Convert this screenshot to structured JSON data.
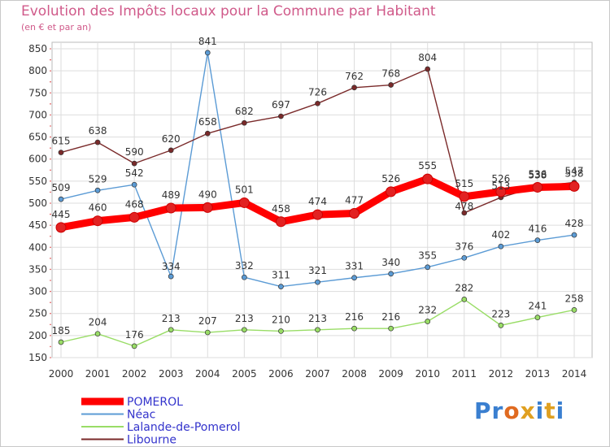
{
  "title": "Evolution des Impôts locaux pour la Commune par Habitant",
  "subtitle": "(en € et par an)",
  "logo_text": "Proxiti",
  "chart_data": {
    "type": "line",
    "title": "Evolution des Impôts locaux pour la Commune par Habitant",
    "subtitle": "(en € et par an)",
    "xlabel": "",
    "ylabel": "",
    "categories": [
      "2000",
      "2001",
      "2002",
      "2003",
      "2004",
      "2005",
      "2006",
      "2007",
      "2008",
      "2009",
      "2010",
      "2011",
      "2012",
      "2013",
      "2014"
    ],
    "ylim": [
      150,
      850
    ],
    "yticks": [
      150,
      200,
      250,
      300,
      350,
      400,
      450,
      500,
      550,
      600,
      650,
      700,
      750,
      800,
      850
    ],
    "grid": true,
    "legend_position": "bottom-left",
    "series": [
      {
        "name": "POMEROL",
        "color": "#ff0000",
        "values": [
          445,
          460,
          468,
          489,
          490,
          501,
          458,
          474,
          477,
          526,
          555,
          515,
          526,
          536,
          538
        ],
        "labels": [
          "445",
          "460",
          "468",
          "489",
          "490",
          "501",
          "458",
          "474",
          "477",
          "526",
          "555",
          "515",
          "526",
          "536",
          "538"
        ]
      },
      {
        "name": "Néac",
        "color": "#5b9bd5",
        "values": [
          509,
          529,
          542,
          334,
          841,
          332,
          311,
          321,
          331,
          340,
          355,
          376,
          402,
          416,
          428
        ],
        "labels": [
          "509",
          "529",
          "542",
          "334",
          "841",
          "332",
          "311",
          "321",
          "331",
          "340",
          "355",
          "376",
          "402",
          "416",
          "428"
        ]
      },
      {
        "name": "Lalande-de-Pomerol",
        "color": "#99dd66",
        "values": [
          185,
          204,
          176,
          213,
          207,
          213,
          210,
          213,
          216,
          216,
          232,
          282,
          223,
          241,
          258
        ],
        "labels": [
          "185",
          "204",
          "176",
          "213",
          "207",
          "213",
          "210",
          "213",
          "216",
          "216",
          "232",
          "282",
          "223",
          "241",
          "258"
        ]
      },
      {
        "name": "Libourne",
        "color": "#7a2a2a",
        "values": [
          615,
          638,
          590,
          620,
          658,
          682,
          697,
          726,
          762,
          768,
          804,
          478,
          513,
          538,
          547
        ],
        "labels": [
          "615",
          "638",
          "590",
          "620",
          "658",
          "682",
          "697",
          "726",
          "762",
          "768",
          "804",
          "478",
          "513",
          "538",
          "547"
        ]
      }
    ]
  },
  "colors": {
    "title": "#d05a8a",
    "axis_text": "#333333",
    "grid": "#dddddd",
    "legend_text": "#3333cc",
    "logo": [
      "#3a7fd0",
      "#3a7fd0",
      "#e06a20",
      "#e0a020",
      "#3a7fd0",
      "#e0a020",
      "#3a7fd0"
    ]
  }
}
